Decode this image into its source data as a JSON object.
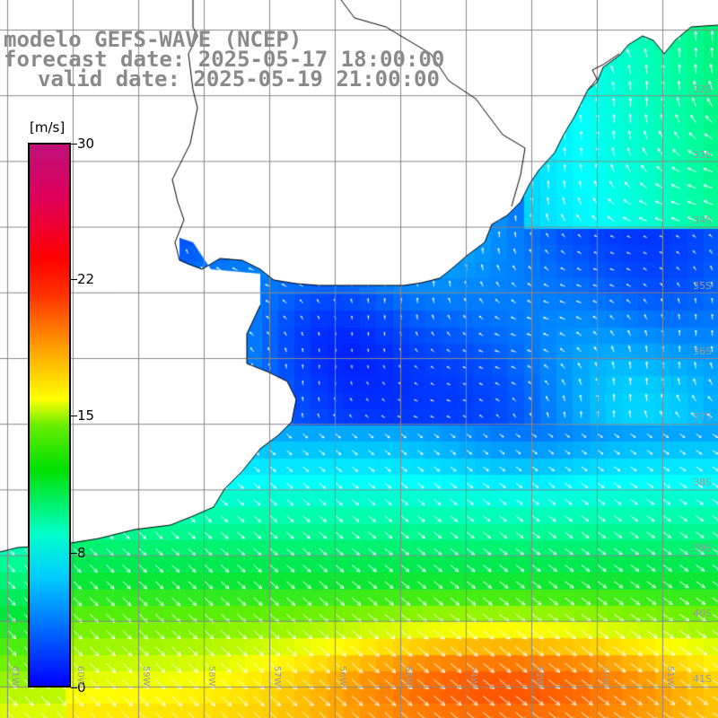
{
  "title": {
    "model": "modelo GEFS-WAVE (NCEP)",
    "forecast": "forecast date: 2025-05-17 18:00:00",
    "valid": "valid date: 2025-05-19 21:00:00"
  },
  "colorbar": {
    "unit": "[m/s]",
    "ticks": [
      {
        "value": 30,
        "label": "30"
      },
      {
        "value": 22,
        "label": "22"
      },
      {
        "value": 15,
        "label": "15"
      },
      {
        "value": 8,
        "label": "8"
      },
      {
        "value": 0,
        "label": "0"
      }
    ],
    "min": 0,
    "max": 30
  },
  "map": {
    "variable": "wind speed",
    "lon_range": [
      -61.5,
      -50.5
    ],
    "lat_range": [
      -41.5,
      -30.5
    ],
    "lon_labels": [
      "61W",
      "60W",
      "59W",
      "58W",
      "57W",
      "56W",
      "55W",
      "54W",
      "53W",
      "52W",
      "51W"
    ],
    "lat_labels": [
      "32S",
      "33S",
      "34S",
      "35S",
      "36S",
      "37S",
      "38S",
      "39S",
      "40S",
      "41S"
    ],
    "grid": true,
    "land_color": "#ffffff",
    "grid_color": "#888888",
    "coast_color": "#000000",
    "arrow_color": "#ffffff"
  }
}
